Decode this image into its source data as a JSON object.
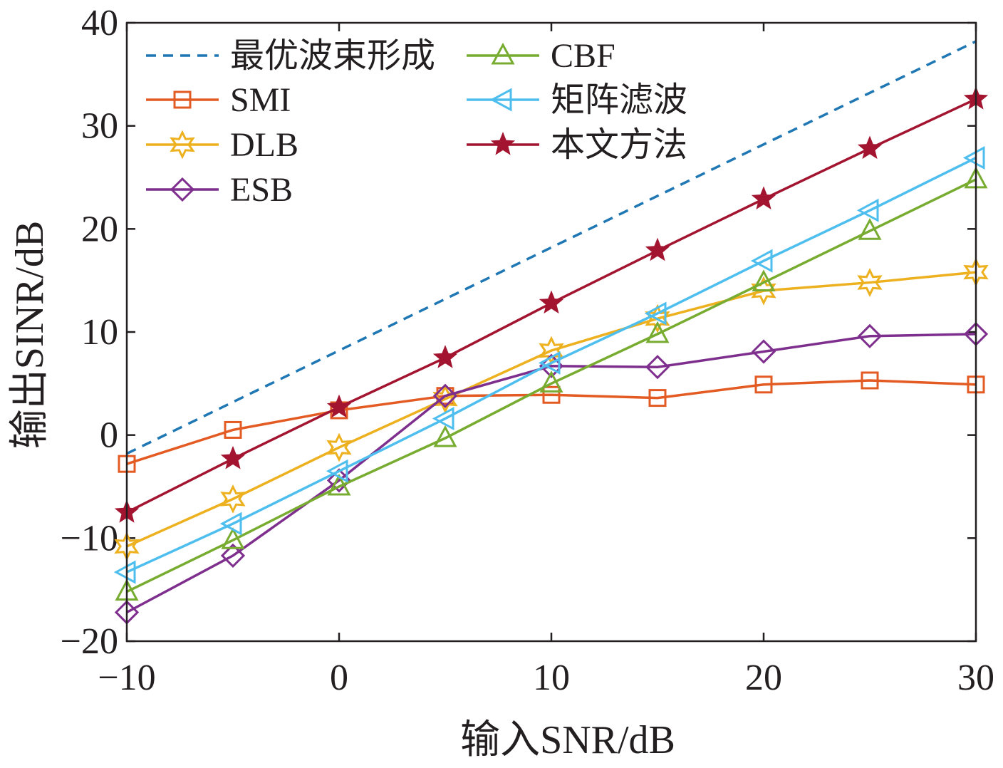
{
  "chart_data": {
    "type": "line",
    "xlabel": "输入SNR/dB",
    "ylabel": "输出SINR/dB",
    "xlim": [
      -10,
      30
    ],
    "ylim": [
      -20,
      40
    ],
    "xticks": [
      -10,
      0,
      10,
      20,
      30
    ],
    "yticks": [
      -20,
      -10,
      0,
      10,
      20,
      30,
      40
    ],
    "xtick_labels": [
      "−10",
      "0",
      "10",
      "20",
      "30"
    ],
    "ytick_labels": [
      "−20",
      "−10",
      "0",
      "10",
      "20",
      "30",
      "40"
    ],
    "grid": false,
    "legend_position": "top-left",
    "x": [
      -10,
      -5,
      0,
      5,
      10,
      15,
      20,
      25,
      30
    ],
    "series": [
      {
        "name": "最优波束形成",
        "color": "#1f77b4",
        "dashed": true,
        "marker": "none",
        "x": [
          -10,
          30
        ],
        "values": [
          -1.8,
          38.2
        ]
      },
      {
        "name": "SMI",
        "color": "#e35b23",
        "marker": "square",
        "values": [
          -2.8,
          0.5,
          2.4,
          3.8,
          3.9,
          3.6,
          4.9,
          5.3,
          4.9
        ]
      },
      {
        "name": "DLB",
        "color": "#edb120",
        "marker": "hexstar",
        "values": [
          -10.8,
          -6.2,
          -1.2,
          3.5,
          8.2,
          11.3,
          14.0,
          14.8,
          15.8
        ]
      },
      {
        "name": "ESB",
        "color": "#7e2f8e",
        "marker": "diamond",
        "values": [
          -17.2,
          -11.7,
          -4.4,
          3.8,
          6.7,
          6.6,
          8.1,
          9.6,
          9.8
        ]
      },
      {
        "name": "CBF",
        "color": "#77ac30",
        "marker": "triangle-up",
        "values": [
          -15.2,
          -10.2,
          -5.0,
          -0.3,
          5.0,
          9.8,
          14.8,
          19.8,
          24.8
        ]
      },
      {
        "name": "矩阵滤波",
        "color": "#4dbeee",
        "marker": "triangle-left",
        "values": [
          -13.3,
          -8.6,
          -3.5,
          1.6,
          7.0,
          11.8,
          16.9,
          21.8,
          26.9
        ]
      },
      {
        "name": "本文方法",
        "color": "#a2142f",
        "marker": "star",
        "values": [
          -7.5,
          -2.3,
          2.7,
          7.5,
          12.8,
          17.9,
          22.9,
          27.8,
          32.6
        ]
      }
    ]
  }
}
